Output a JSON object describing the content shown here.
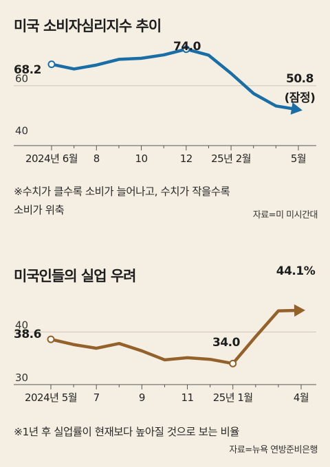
{
  "chart_data": [
    {
      "type": "line",
      "title": "미국 소비자심리지수 추이",
      "x": [
        "2024-06",
        "2024-07",
        "2024-08",
        "2024-09",
        "2024-10",
        "2024-11",
        "2024-12",
        "2025-01",
        "2025-02",
        "2025-03",
        "2025-04",
        "2025-05"
      ],
      "values": [
        68.2,
        66.4,
        67.9,
        70.1,
        70.5,
        71.8,
        74.0,
        71.7,
        64.7,
        57.0,
        52.2,
        50.8
      ],
      "ticks": [
        "2024년 6월",
        "8",
        "10",
        "12",
        "25년 2월",
        "5월"
      ],
      "yticks": [
        "60",
        "40"
      ],
      "ylim": [
        37,
        76
      ],
      "labels": {
        "start": "68.2",
        "peak": "74.0",
        "end": "50.8",
        "end_note": "(잠정)"
      },
      "note": [
        "※수치가 클수록 소비가 늘어나고, 수치가 작을수록",
        "소비가 위축"
      ],
      "source": "자료=미 미시간대",
      "color": "#1a6ea6"
    },
    {
      "type": "line",
      "title": "미국인들의 실업 우려",
      "x": [
        "2024-05",
        "2024-06",
        "2024-07",
        "2024-08",
        "2024-09",
        "2024-10",
        "2024-11",
        "2024-12",
        "2025-01",
        "2025-02",
        "2025-03",
        "2025-04"
      ],
      "values": [
        38.6,
        37.6,
        36.9,
        37.8,
        36.4,
        34.7,
        35.1,
        34.8,
        34.0,
        39.1,
        44.0,
        44.1
      ],
      "ticks": [
        "2024년 5월",
        "7",
        "9",
        "11",
        "25년 1월",
        "4월"
      ],
      "yticks": [
        "40",
        "30"
      ],
      "ylim": [
        30,
        48
      ],
      "labels": {
        "start": "38.6",
        "low": "34.0",
        "end": "44.1%"
      },
      "note": [
        "※1년 후 실업률이 현재보다 높아질 것으로 보는 비율"
      ],
      "source": "자료=뉴욕 연방준비은행",
      "color": "#94612a"
    }
  ]
}
